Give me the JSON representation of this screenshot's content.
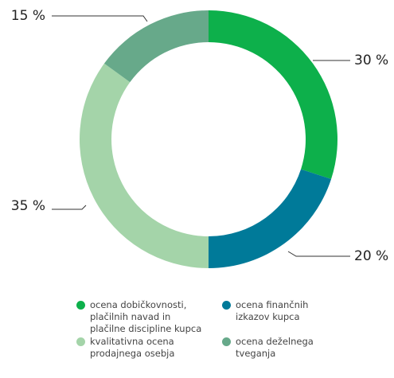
{
  "chart_data": {
    "type": "donut",
    "categories": [
      "ocena dobičkovnosti, plačilnih navad in plačilne discipline kupca",
      "ocena finančnih izkazov kupca",
      "kvalitativna ocena prodajnega osebja",
      "ocena deželnega tveganja"
    ],
    "values": [
      30,
      20,
      35,
      15
    ],
    "value_labels": [
      "30 %",
      "20 %",
      "35 %",
      "15 %"
    ],
    "colors": [
      "#0db04b",
      "#007a99",
      "#a4d4a9",
      "#67a98a"
    ]
  }
}
